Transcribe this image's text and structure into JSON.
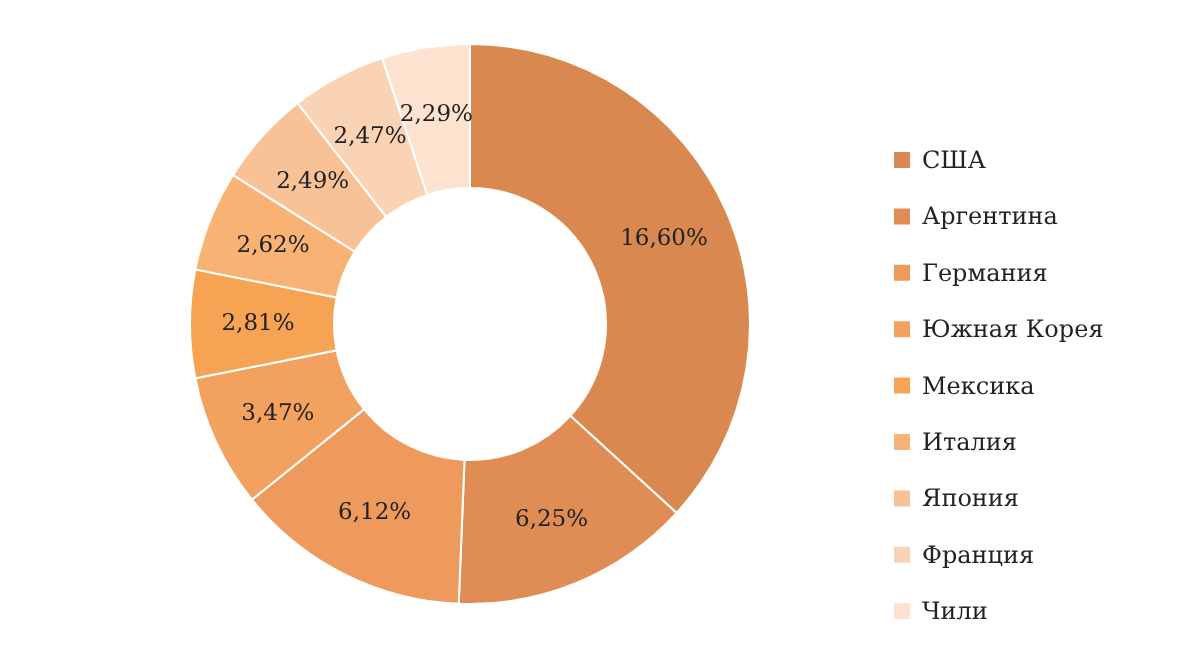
{
  "chart_data": {
    "type": "donut",
    "categories": [
      "США",
      "Аргентина",
      "Германия",
      "Южная Корея",
      "Мексика",
      "Италия",
      "Япония",
      "Франция",
      "Чили"
    ],
    "values": [
      16.6,
      6.25,
      6.12,
      3.47,
      2.81,
      2.62,
      2.49,
      2.47,
      2.29
    ],
    "value_labels": [
      "16,60%",
      "6,25%",
      "6,12%",
      "3,47%",
      "2,81%",
      "2,62%",
      "2,49%",
      "2,47%",
      "2,29%"
    ],
    "colors": [
      "#d9884f",
      "#e08d55",
      "#ed9a5c",
      "#f3a15f",
      "#f6a454",
      "#f8b273",
      "#f9c196",
      "#fad2b4",
      "#fce2cf"
    ],
    "legend": "right"
  }
}
